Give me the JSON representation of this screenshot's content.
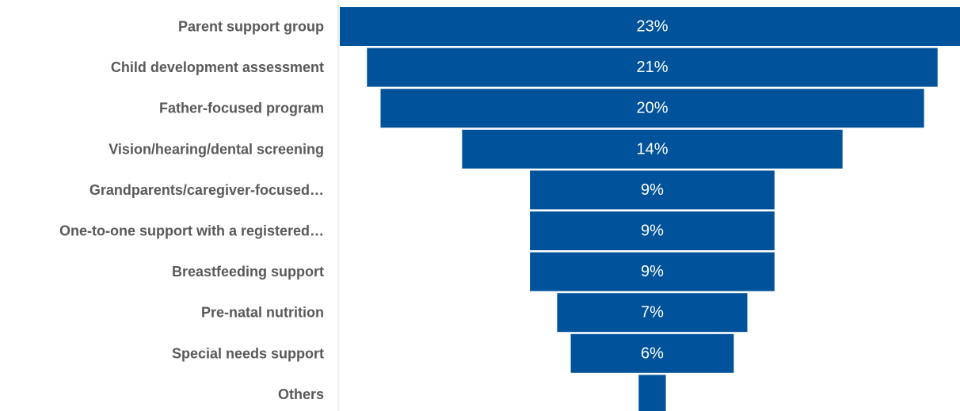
{
  "chart_data": {
    "type": "bar",
    "orientation": "horizontal-centered",
    "title": "",
    "xlabel": "",
    "ylabel": "",
    "categories": [
      "Parent support group",
      "Child development assessment",
      "Father-focused program",
      "Vision/hearing/dental screening",
      "Grandparents/caregiver-focused…",
      "One-to-one support with a registered…",
      "Breastfeeding support",
      "Pre-natal nutrition",
      "Special needs support",
      "Others"
    ],
    "values": [
      23,
      21,
      20,
      14,
      9,
      9,
      9,
      7,
      6,
      1
    ],
    "data_labels": [
      "23%",
      "21%",
      "20%",
      "14%",
      "9%",
      "9%",
      "9%",
      "7%",
      "6%",
      ""
    ],
    "unit": "%",
    "grid": false,
    "legend": "none",
    "colors": {
      "bar": "#00529b",
      "axis": "#d9d9d9",
      "category_text": "#595959",
      "value_text": "#ffffff"
    }
  }
}
